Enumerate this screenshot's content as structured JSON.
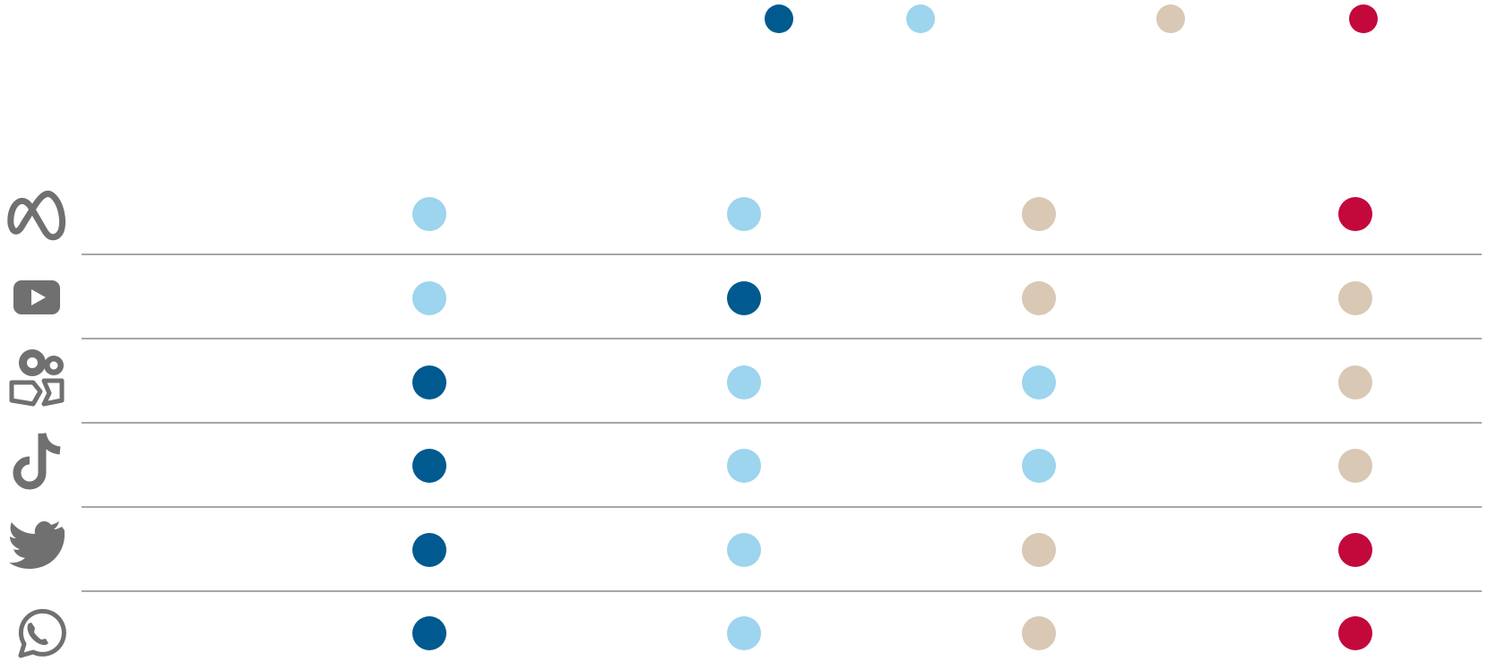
{
  "colors": {
    "dark_blue": "#005A8F",
    "light_blue": "#9DD4EE",
    "beige": "#D8C8B4",
    "red": "#C3083C",
    "icon": "#707070",
    "rule": "#8A8A8A"
  },
  "legend": {
    "keys": [
      "dark_blue",
      "light_blue",
      "beige",
      "red"
    ]
  },
  "rows": [
    {
      "icon": "meta-icon"
    },
    {
      "icon": "youtube-icon"
    },
    {
      "icon": "kuaishou-icon"
    },
    {
      "icon": "tiktok-icon"
    },
    {
      "icon": "twitter-icon"
    },
    {
      "icon": "whatsapp-icon"
    }
  ],
  "chart_data": {
    "type": "table",
    "title": "",
    "columns": 4,
    "rows": [
      {
        "platform_icon": "meta-icon",
        "cells": [
          "light_blue",
          "light_blue",
          "beige",
          "red"
        ]
      },
      {
        "platform_icon": "youtube-icon",
        "cells": [
          "light_blue",
          "dark_blue",
          "beige",
          "beige"
        ]
      },
      {
        "platform_icon": "kuaishou-icon",
        "cells": [
          "dark_blue",
          "light_blue",
          "light_blue",
          "beige"
        ]
      },
      {
        "platform_icon": "tiktok-icon",
        "cells": [
          "dark_blue",
          "light_blue",
          "light_blue",
          "beige"
        ]
      },
      {
        "platform_icon": "twitter-icon",
        "cells": [
          "dark_blue",
          "light_blue",
          "beige",
          "red"
        ]
      },
      {
        "platform_icon": "whatsapp-icon",
        "cells": [
          "dark_blue",
          "light_blue",
          "beige",
          "red"
        ]
      }
    ],
    "legend_placement": "top-right"
  }
}
